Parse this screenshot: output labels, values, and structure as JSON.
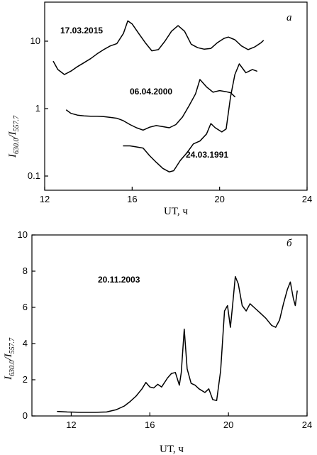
{
  "chart_data": [
    {
      "panel": "а",
      "type": "line",
      "xlabel": "UT, ч",
      "ylabel": {
        "main": "I",
        "num": "630.0",
        "den": "557.7"
      },
      "xlim": [
        12,
        24
      ],
      "ylim": [
        0.1,
        20
      ],
      "yscale": "log",
      "xticks": [
        12,
        16,
        20,
        24
      ],
      "yticks": [
        0.1,
        1,
        10
      ],
      "ytick_labels": [
        "0.1",
        "1",
        "10"
      ],
      "series": [
        {
          "name": "17.03.2015",
          "x": [
            12.4,
            12.6,
            12.9,
            13.2,
            13.5,
            13.8,
            14.1,
            14.4,
            14.7,
            15.0,
            15.3,
            15.6,
            15.8,
            16.0,
            16.3,
            16.6,
            16.9,
            17.2,
            17.5,
            17.8,
            18.1,
            18.4,
            18.7,
            19.0,
            19.3,
            19.6,
            19.9,
            20.2,
            20.4,
            20.7,
            21.0,
            21.3,
            21.6,
            21.9,
            22.0
          ],
          "y": [
            5.0,
            3.8,
            3.2,
            3.6,
            4.2,
            4.8,
            5.5,
            6.5,
            7.5,
            8.5,
            9.2,
            13.0,
            20.0,
            18.0,
            13.0,
            9.5,
            7.2,
            7.5,
            10.0,
            14.0,
            17.0,
            14.0,
            9.0,
            8.0,
            7.6,
            7.8,
            9.5,
            11.0,
            11.5,
            10.5,
            8.5,
            7.5,
            8.2,
            9.5,
            10.2
          ]
        },
        {
          "name": "06.04.2000",
          "x": [
            13.0,
            13.2,
            13.5,
            13.8,
            14.1,
            14.4,
            14.7,
            15.0,
            15.3,
            15.6,
            15.9,
            16.2,
            16.5,
            16.8,
            17.1,
            17.4,
            17.7,
            18.0,
            18.3,
            18.6,
            18.9,
            19.1,
            19.4,
            19.7,
            20.0,
            20.3,
            20.5,
            20.7
          ],
          "y": [
            0.95,
            0.85,
            0.8,
            0.78,
            0.77,
            0.77,
            0.76,
            0.74,
            0.72,
            0.66,
            0.58,
            0.52,
            0.48,
            0.53,
            0.56,
            0.54,
            0.52,
            0.58,
            0.75,
            1.1,
            1.65,
            2.7,
            2.1,
            1.75,
            1.85,
            1.78,
            1.72,
            1.5
          ]
        },
        {
          "name": "24.03.1991",
          "x": [
            15.6,
            15.9,
            16.2,
            16.5,
            16.8,
            17.1,
            17.4,
            17.7,
            17.9,
            18.2,
            18.5,
            18.8,
            19.1,
            19.4,
            19.6,
            19.8,
            20.1,
            20.3,
            20.5,
            20.7,
            20.9,
            21.2,
            21.5,
            21.7
          ],
          "y": [
            0.28,
            0.28,
            0.27,
            0.26,
            0.2,
            0.16,
            0.13,
            0.115,
            0.12,
            0.17,
            0.22,
            0.3,
            0.33,
            0.42,
            0.6,
            0.52,
            0.45,
            0.5,
            1.5,
            3.2,
            4.6,
            3.4,
            3.8,
            3.6
          ]
        }
      ],
      "annotations": [
        "17.03.2015",
        "06.04.2000",
        "24.03.1991"
      ]
    },
    {
      "panel": "б",
      "type": "line",
      "xlabel": "UT, ч",
      "ylabel": {
        "main": "I",
        "num": "630.0",
        "den": "557.7"
      },
      "xlim": [
        10,
        24
      ],
      "ylim": [
        0,
        10
      ],
      "xticks": [
        12,
        16,
        20,
        24
      ],
      "yticks": [
        0,
        2,
        4,
        6,
        8,
        10
      ],
      "series": [
        {
          "name": "20.11.2003",
          "x": [
            11.3,
            11.8,
            12.5,
            13.2,
            13.8,
            14.3,
            14.7,
            15.0,
            15.3,
            15.6,
            15.8,
            16.0,
            16.2,
            16.4,
            16.6,
            16.9,
            17.1,
            17.3,
            17.5,
            17.6,
            17.75,
            17.9,
            18.1,
            18.3,
            18.5,
            18.8,
            19.0,
            19.2,
            19.4,
            19.6,
            19.8,
            19.95,
            20.1,
            20.2,
            20.35,
            20.5,
            20.7,
            20.9,
            21.1,
            21.3,
            21.6,
            21.9,
            22.2,
            22.4,
            22.6,
            22.8,
            23.0,
            23.15,
            23.3,
            23.4,
            23.5
          ],
          "y": [
            0.25,
            0.22,
            0.2,
            0.2,
            0.22,
            0.35,
            0.55,
            0.8,
            1.1,
            1.5,
            1.85,
            1.6,
            1.55,
            1.75,
            1.6,
            2.1,
            2.35,
            2.4,
            1.7,
            2.4,
            4.8,
            2.6,
            1.8,
            1.7,
            1.5,
            1.3,
            1.5,
            0.9,
            0.85,
            2.5,
            5.8,
            6.1,
            4.9,
            6.0,
            7.7,
            7.3,
            6.1,
            5.8,
            6.2,
            6.0,
            5.7,
            5.4,
            5.0,
            4.9,
            5.3,
            6.2,
            7.0,
            7.4,
            6.5,
            6.1,
            6.9
          ]
        }
      ],
      "annotations": [
        "20.11.2003"
      ]
    }
  ]
}
